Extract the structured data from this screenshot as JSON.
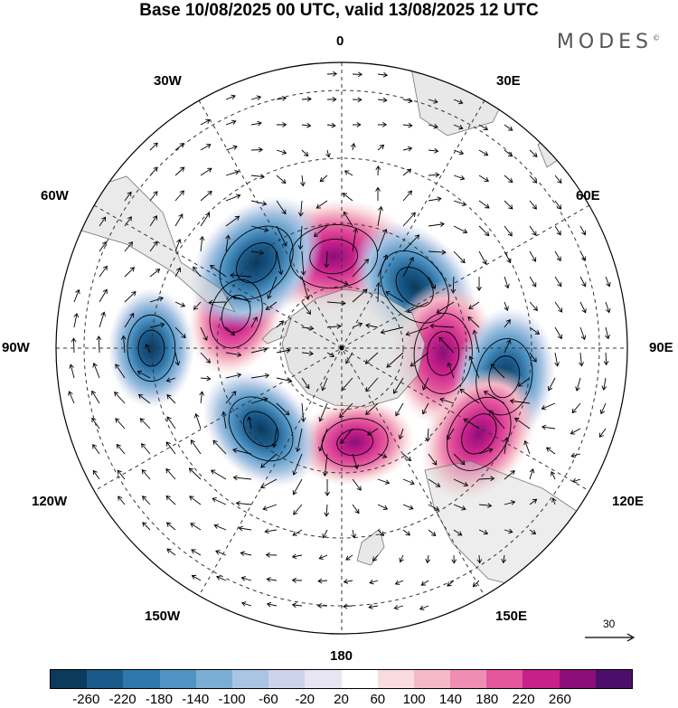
{
  "title": "Base 10/08/2025 00 UTC, valid 13/08/2025 12 UTC",
  "brand": {
    "name": "MODES",
    "mark": "©"
  },
  "longitude_labels": {
    "lon_0": "0",
    "lon_30e": "30E",
    "lon_60e": "60E",
    "lon_90e": "90E",
    "lon_120e": "120E",
    "lon_150e": "150E",
    "lon_180": "180",
    "lon_150w": "150W",
    "lon_120w": "120W",
    "lon_90w": "90W",
    "lon_60w": "60W",
    "lon_30w": "30W"
  },
  "reference_vector": {
    "label": "30"
  },
  "colorbar": {
    "colors": [
      "#0b3a5c",
      "#1a5a8a",
      "#2f78ad",
      "#4f94c4",
      "#7aaed4",
      "#a9c5e3",
      "#ccd3ea",
      "#e7e5f2",
      "#ffffff",
      "#f9dcdf",
      "#f5b9c6",
      "#f08db2",
      "#e4569e",
      "#c7208a",
      "#8b0e78",
      "#4b0f6b"
    ],
    "ticks": [
      "-260",
      "-220",
      "-180",
      "-140",
      "-100",
      "-60",
      "-20",
      "20",
      "60",
      "100",
      "140",
      "180",
      "220",
      "260"
    ]
  },
  "anomalies": [
    {
      "lon": -5,
      "colat": 29,
      "value": 240
    },
    {
      "lon": 50,
      "colat": 30,
      "value": -200
    },
    {
      "lon": 93,
      "colat": 32,
      "value": 200
    },
    {
      "lon": 100,
      "colat": 52,
      "value": -180
    },
    {
      "lon": 122,
      "colat": 51,
      "value": 190
    },
    {
      "lon": 172,
      "colat": 30,
      "value": 120
    },
    {
      "lon": -135,
      "colat": 36,
      "value": -160
    },
    {
      "lon": -72,
      "colat": 35,
      "value": 140
    },
    {
      "lon": -45,
      "colat": 38,
      "value": -220
    },
    {
      "lon": -90,
      "colat": 60,
      "value": -120
    }
  ]
}
